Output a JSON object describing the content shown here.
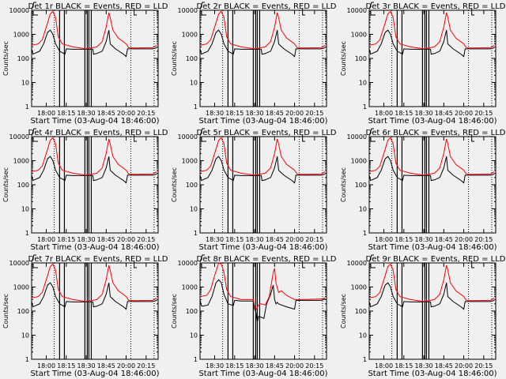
{
  "chart_data": {
    "type": "line",
    "ylabel": "Counts/sec",
    "xlabel": "Start Time (03-Aug-04 18:46:00)",
    "yscale": "log",
    "ylim": [
      1,
      10000
    ],
    "yticks": [
      "1",
      "10",
      "100",
      "1000",
      "10000"
    ],
    "x_units": "minutes after 18:00",
    "xlim": [
      -11,
      84
    ],
    "legend": "in title: BLACK = Events, RED = LLD",
    "default_series": [
      {
        "name": "LLD",
        "color": "#ff0000",
        "x": [
          -11,
          -6,
          -3,
          0,
          3,
          5,
          7,
          9,
          12,
          20,
          30,
          38,
          42,
          45,
          47,
          48,
          50,
          54,
          60,
          62,
          66,
          80,
          83
        ],
        "y": [
          350,
          400,
          600,
          2000,
          7000,
          9000,
          5000,
          800,
          400,
          300,
          250,
          300,
          500,
          2000,
          8000,
          5000,
          1500,
          700,
          400,
          280,
          270,
          280,
          350
        ]
      },
      {
        "name": "Events",
        "color": "#000000",
        "x": [
          -11,
          -10,
          -9,
          -5,
          -2,
          1,
          3,
          5,
          7,
          10,
          14,
          15,
          20,
          35,
          35.5,
          38,
          42,
          45,
          47,
          48,
          52,
          58,
          60,
          61,
          80,
          83
        ],
        "y": [
          250,
          150,
          160,
          200,
          400,
          1200,
          1500,
          1000,
          400,
          200,
          150,
          250,
          240,
          240,
          150,
          160,
          200,
          500,
          1500,
          400,
          250,
          150,
          120,
          250,
          250,
          280
        ]
      }
    ],
    "panels": [
      {
        "title": "Det 1r BLACK = Events, RED = LLD",
        "xticks": [
          "18:00",
          "18:15",
          "18:30",
          "18:45",
          "20:00",
          "20:15"
        ],
        "gaps": [
          10,
          13.6,
          29,
          30.8,
          32,
          33.8
        ]
      },
      {
        "title": "Det 2r BLACK = Events, RED = LLD",
        "xticks": [
          "18:30",
          "18:15",
          "18:30",
          "18:45",
          "20:00",
          "20:15"
        ],
        "gaps": [
          10,
          13.6,
          29,
          30.8,
          32,
          33.8
        ]
      },
      {
        "title": "Det 3r BLACK = Events, RED = LLD",
        "xticks": [
          "18:00",
          "18:15",
          "18:30",
          "18:45",
          "20:00",
          "20:15"
        ],
        "gaps": [
          10,
          13.6,
          29,
          30.8,
          32,
          33.8
        ]
      },
      {
        "title": "Det 4r BLACK = Events, RED = LLD",
        "xticks": [
          "18:00",
          "18:15",
          "18:30",
          "18:45",
          "20:00",
          "20:15"
        ],
        "gaps": [
          10,
          13.6,
          29,
          30.8,
          32,
          33.8
        ]
      },
      {
        "title": "Det 5r BLACK = Events, RED = LLD",
        "xticks": [
          "18:30",
          "18:15",
          "18:30",
          "18:45",
          "20:00",
          "20:15"
        ],
        "gaps": [
          10,
          13.6,
          29,
          30.8,
          32,
          33.8
        ]
      },
      {
        "title": "Det 6r BLACK = Events, RED = LLD",
        "xticks": [
          "18:00",
          "18:15",
          "18:30",
          "18:45",
          "20:00",
          "20:15"
        ],
        "gaps": [
          10,
          13.6,
          29,
          30.8,
          32,
          33.8
        ]
      },
      {
        "title": "Det 7r BLACK = Events, RED = LLD",
        "xticks": [
          "18:00",
          "18:15",
          "18:30",
          "18:45",
          "20:00",
          "20:15"
        ],
        "gaps": [
          10,
          13.6,
          29,
          30.8,
          32,
          33.8
        ]
      },
      {
        "title": "Det 8r BLACK = Events, RED = LLD",
        "xticks": [
          "18:30",
          "18:15",
          "18:30",
          "18:45",
          "20:00",
          "20:15"
        ],
        "gaps": [
          10,
          13.6,
          29,
          30.8,
          32,
          33.8
        ],
        "override_events": {
          "x": [
            -11,
            -10,
            -9,
            -5,
            -2,
            1,
            3,
            5,
            7,
            10,
            14,
            15,
            20,
            29,
            30,
            31,
            32,
            33,
            35,
            37,
            39,
            42,
            44,
            45,
            46,
            47,
            48,
            50,
            54,
            60,
            61,
            80,
            83
          ],
          "y": [
            300,
            170,
            160,
            180,
            400,
            1500,
            2000,
            1500,
            500,
            200,
            170,
            280,
            260,
            260,
            120,
            90,
            35,
            60,
            55,
            50,
            200,
            500,
            1200,
            300,
            200,
            230,
            200,
            180,
            150,
            120,
            280,
            280,
            320
          ]
        },
        "override_lld": {
          "x": [
            -11,
            -6,
            -3,
            0,
            3,
            5,
            7,
            9,
            12,
            20,
            29,
            30,
            31,
            33,
            35,
            38,
            41,
            42,
            44,
            45,
            46,
            48,
            50,
            54,
            60,
            66,
            80,
            83
          ],
          "y": [
            400,
            450,
            800,
            3000,
            10000,
            9000,
            4000,
            800,
            400,
            300,
            300,
            150,
            110,
            180,
            200,
            180,
            400,
            900,
            4000,
            6000,
            1500,
            600,
            700,
            450,
            300,
            300,
            320,
            350
          ]
        }
      },
      {
        "title": "Det 9r BLACK = Events, RED = LLD",
        "xticks": [
          "18:00",
          "18:15",
          "18:30",
          "18:45",
          "20:00",
          "20:15"
        ],
        "gaps": [
          10,
          13.6,
          29,
          30.8,
          32,
          33.8
        ]
      }
    ],
    "dotted_lines": [
      6,
      63.5,
      81
    ]
  }
}
